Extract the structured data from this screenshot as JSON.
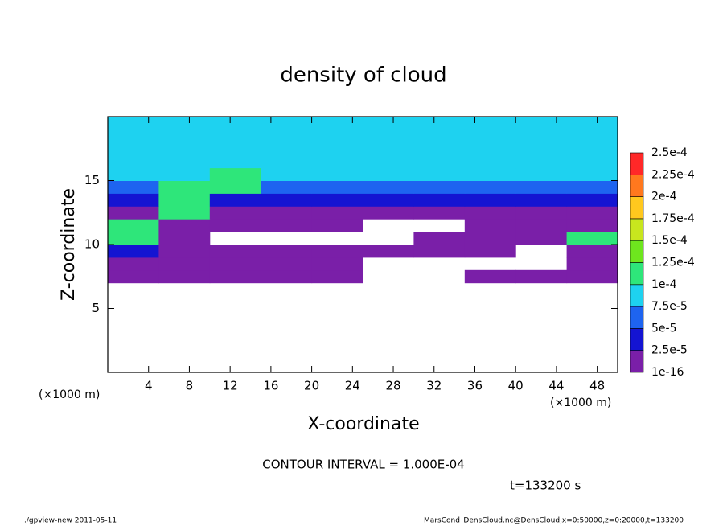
{
  "chart_data": {
    "type": "heatmap",
    "title": "density of cloud",
    "x_label": "X-coordinate",
    "y_label": "Z-coordinate",
    "x_unit": "(×1000 m)",
    "y_unit": "(×1000 m)",
    "xlim": [
      0,
      50
    ],
    "ylim": [
      0,
      20
    ],
    "xticks": [
      4,
      8,
      12,
      16,
      20,
      24,
      28,
      32,
      36,
      40,
      44,
      48
    ],
    "yticks": [
      5,
      10,
      15
    ],
    "field": {
      "x_edges": [
        0,
        5,
        10,
        15,
        20,
        25,
        30,
        35,
        40,
        45,
        50
      ],
      "z_edges": [
        7,
        8,
        9,
        10,
        11,
        12,
        13,
        14,
        15,
        16,
        17,
        18,
        19,
        20
      ],
      "values": [
        [
          1e-16,
          1e-16,
          1e-16,
          1e-16,
          1e-16,
          null,
          null,
          1e-16,
          1e-16,
          1e-16
        ],
        [
          1e-16,
          1e-16,
          1e-16,
          1e-16,
          1e-16,
          null,
          null,
          null,
          null,
          1e-16
        ],
        [
          3e-05,
          1e-16,
          1e-16,
          1e-16,
          1e-16,
          1e-16,
          1e-16,
          1e-16,
          null,
          1e-16
        ],
        [
          0.00011,
          1e-16,
          null,
          null,
          null,
          null,
          1e-16,
          1e-16,
          1e-16,
          0.00011
        ],
        [
          0.00011,
          1e-16,
          1e-16,
          1e-16,
          1e-16,
          null,
          null,
          1e-16,
          1e-16,
          1e-16
        ],
        [
          1e-16,
          0.00011,
          1e-16,
          1e-16,
          1e-16,
          1e-16,
          1e-16,
          1e-16,
          1e-16,
          1e-16
        ],
        [
          3e-05,
          0.00011,
          3e-05,
          3e-05,
          3e-05,
          3e-05,
          3e-05,
          3e-05,
          3e-05,
          3e-05
        ],
        [
          6e-05,
          0.00011,
          0.00011,
          6e-05,
          6e-05,
          6e-05,
          6e-05,
          6e-05,
          6e-05,
          6e-05
        ],
        [
          8.5e-05,
          8.5e-05,
          0.00011,
          8.5e-05,
          8.5e-05,
          8.5e-05,
          8.5e-05,
          8.5e-05,
          8.5e-05,
          8.5e-05
        ],
        [
          8.5e-05,
          8.5e-05,
          8.5e-05,
          8.5e-05,
          8.5e-05,
          8.5e-05,
          8.5e-05,
          8.5e-05,
          8.5e-05,
          8.5e-05
        ],
        [
          8.5e-05,
          8.5e-05,
          8.5e-05,
          8.5e-05,
          8.5e-05,
          8.5e-05,
          8.5e-05,
          8.5e-05,
          8.5e-05,
          8.5e-05
        ],
        [
          8.5e-05,
          8.5e-05,
          8.5e-05,
          8.5e-05,
          8.5e-05,
          8.5e-05,
          8.5e-05,
          8.5e-05,
          8.5e-05,
          8.5e-05
        ],
        [
          8.5e-05,
          8.5e-05,
          8.5e-05,
          8.5e-05,
          8.5e-05,
          8.5e-05,
          8.5e-05,
          8.5e-05,
          8.5e-05,
          8.5e-05
        ]
      ]
    },
    "colorbar": {
      "levels": [
        {
          "value": 1e-16,
          "label": "1e-16"
        },
        {
          "value": 2.5e-05,
          "label": "2.5e-5"
        },
        {
          "value": 5e-05,
          "label": "5e-5"
        },
        {
          "value": 7.5e-05,
          "label": "7.5e-5"
        },
        {
          "value": 0.0001,
          "label": "1e-4"
        },
        {
          "value": 0.000125,
          "label": "1.25e-4"
        },
        {
          "value": 0.00015,
          "label": "1.5e-4"
        },
        {
          "value": 0.000175,
          "label": "1.75e-4"
        },
        {
          "value": 0.0002,
          "label": "2e-4"
        },
        {
          "value": 0.000225,
          "label": "2.25e-4"
        },
        {
          "value": 0.00025,
          "label": "2.5e-4"
        }
      ],
      "colors": [
        "#7a1fa8",
        "#1414d2",
        "#1e64f0",
        "#1ed2f0",
        "#2ee67a",
        "#6ee61e",
        "#c8e61e",
        "#ffc81e",
        "#ff781e",
        "#ff2828"
      ]
    },
    "contour_interval": "CONTOUR INTERVAL = 1.000E-04",
    "time_label": "t=133200 s",
    "footer_left": "./gpview-new  2011-05-11",
    "footer_right": "MarsCond_DensCloud.nc@DensCloud,x=0:50000,z=0:20000,t=133200"
  }
}
